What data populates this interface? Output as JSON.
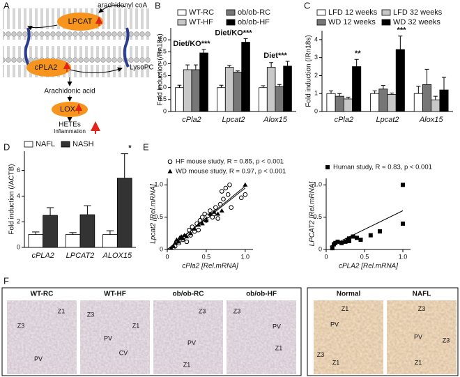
{
  "panel_a": {
    "panel": "A",
    "acyl_donor": "arachidonyl coA",
    "enzyme_1": "LPCAT",
    "enzyme_2": "cPLA2",
    "product_1": "LysoPC",
    "product_2": "Arachidonic acid",
    "enzyme_3": "LOX",
    "product_3": "HETEs",
    "outcome": "Inflammation"
  },
  "chart_data": [
    {
      "type": "bar",
      "panel": "B",
      "y_label": "Fold induction (/Rn18s)",
      "categories": [
        "cPla2",
        "Lpcat2",
        "Alox15"
      ],
      "series": [
        {
          "name": "WT-RC",
          "color": "#ffffff",
          "values": [
            1.0,
            1.0,
            1.0
          ],
          "errors": [
            0.1,
            0.1,
            0.08
          ]
        },
        {
          "name": "WT-HF",
          "color": "#c8c8c8",
          "values": [
            1.75,
            1.85,
            1.85
          ],
          "errors": [
            0.2,
            0.08,
            0.2
          ]
        },
        {
          "name": "ob/ob-RC",
          "color": "#777777",
          "values": [
            1.75,
            1.65,
            1.05
          ],
          "errors": [
            0.2,
            0.05,
            0.08
          ]
        },
        {
          "name": "ob/ob-HF",
          "color": "#000000",
          "values": [
            2.45,
            2.9,
            1.9
          ],
          "errors": [
            0.15,
            0.15,
            0.2
          ]
        }
      ],
      "annotations": [
        "Diet/KO***",
        "Diet/KO***",
        "Diet***"
      ],
      "ylim": [
        0,
        3.5
      ],
      "yticks": [
        0,
        0.5,
        {
          "value": 1,
          "label": "1.0"
        },
        1.5,
        {
          "value": 2,
          "label": "2.0"
        },
        2.5,
        {
          "value": 3,
          "label": "3.0"
        }
      ]
    },
    {
      "type": "bar",
      "panel": "C",
      "y_label": "Fold induction (/Rn18s)",
      "categories": [
        "cPla2",
        "Lpcat2",
        "Alox15"
      ],
      "series": [
        {
          "name": "LFD 12 weeks",
          "color": "#ffffff",
          "values": [
            1.0,
            1.0,
            1.0
          ],
          "errors": [
            0.15,
            0.15,
            0.4
          ]
        },
        {
          "name": "WD 12 weeks",
          "color": "#777777",
          "values": [
            0.85,
            1.25,
            1.5
          ],
          "errors": [
            0.15,
            0.2,
            0.85
          ]
        },
        {
          "name": "LFD 32 weeks",
          "color": "#c8c8c8",
          "values": [
            0.7,
            0.95,
            0.65
          ],
          "errors": [
            0.1,
            0.08,
            0.2
          ]
        },
        {
          "name": "WD 32 weeks",
          "color": "#000000",
          "values": [
            2.5,
            3.45,
            1.2
          ],
          "errors": [
            0.4,
            0.75,
            0.7
          ]
        }
      ],
      "annotations": [
        "**",
        "***"
      ],
      "ylim": [
        0,
        4.5
      ],
      "yticks": [
        0,
        1,
        2,
        3,
        4
      ]
    },
    {
      "type": "bar",
      "panel": "D",
      "y_label": "Fold induction (/ACTB)",
      "categories": [
        "cPLA2",
        "LPCAT2",
        "ALOX15"
      ],
      "series": [
        {
          "name": "NAFL",
          "color": "#ffffff",
          "values": [
            1.0,
            1.0,
            1.0
          ],
          "errors": [
            0.2,
            0.15,
            0.3
          ]
        },
        {
          "name": "NASH",
          "color": "#333333",
          "values": [
            2.5,
            2.55,
            5.4
          ],
          "errors": [
            0.6,
            0.7,
            1.9
          ]
        }
      ],
      "annotations": [
        "*"
      ],
      "ylim": [
        0,
        7.5
      ],
      "yticks": [
        0,
        2,
        4,
        6
      ]
    },
    {
      "type": "scatter",
      "panel": "E",
      "x_label": "cPla2 [Rel.mRNA]",
      "y_label": "Lpcat2 [Rel.mRNA]",
      "series": [
        {
          "name": "HF mouse study, R = 0.85, p < 0.001",
          "marker": "circle",
          "color": "#000000",
          "x": [
            0.1,
            0.12,
            0.15,
            0.2,
            0.22,
            0.25,
            0.28,
            0.3,
            0.32,
            0.35,
            0.38,
            0.4,
            0.42,
            0.45,
            0.48,
            0.5,
            0.52,
            0.55,
            0.58,
            0.6,
            0.62,
            0.65,
            0.68,
            0.7,
            0.72,
            0.75,
            0.78,
            0.8,
            0.82,
            0.95,
            1.0
          ],
          "y": [
            0.05,
            0.12,
            0.1,
            0.15,
            0.2,
            0.12,
            0.3,
            0.22,
            0.35,
            0.28,
            0.4,
            0.3,
            0.45,
            0.5,
            0.55,
            0.45,
            0.52,
            0.6,
            0.5,
            0.55,
            0.65,
            0.48,
            0.7,
            0.9,
            0.78,
            0.95,
            0.85,
            1.0,
            0.65,
            0.8,
            0.85
          ]
        },
        {
          "name": "WD mouse study, R = 0.97, p < 0.001",
          "marker": "triangle",
          "color": "#000000",
          "x": [
            0.05,
            0.08,
            0.1,
            0.12,
            0.14,
            0.16,
            0.18,
            0.2,
            0.22,
            0.25,
            0.3,
            0.35,
            0.4,
            0.45,
            0.5,
            0.55,
            0.6,
            0.65,
            0.7,
            1.0
          ],
          "y": [
            0.02,
            0.05,
            0.1,
            0.15,
            0.12,
            0.18,
            0.2,
            0.17,
            0.22,
            0.2,
            0.25,
            0.32,
            0.38,
            0.4,
            0.45,
            0.55,
            0.58,
            0.55,
            0.6,
            1.0
          ]
        }
      ],
      "trend_lines": [
        {
          "x": [
            0,
            1
          ],
          "y": [
            0,
            0.95
          ]
        },
        {
          "x": [
            0,
            1
          ],
          "y": [
            0,
            0.98
          ]
        }
      ],
      "xlim": [
        0,
        1.1
      ],
      "xticks": [
        0,
        0.5,
        {
          "value": 1,
          "label": "1.0"
        }
      ],
      "ylim": [
        0,
        1.1
      ],
      "yticks": [
        0,
        0.5,
        {
          "value": 1,
          "label": "1.0"
        }
      ]
    },
    {
      "type": "scatter",
      "x_label": "cPLA2 [Rel.mRNA]",
      "y_label": "LPCAT2 [Rel.mRNA]",
      "series": [
        {
          "name": "Human study, R = 0.83, p < 0.001",
          "marker": "square",
          "color": "#000000",
          "x": [
            0.08,
            0.1,
            0.12,
            0.15,
            0.2,
            0.25,
            0.28,
            0.3,
            0.3,
            0.35,
            0.4,
            0.45,
            0.58,
            0.7,
            1.0,
            1.0
          ],
          "y": [
            0.02,
            0.08,
            0.1,
            0.12,
            0.1,
            0.12,
            0.15,
            0.13,
            0.17,
            0.2,
            0.18,
            0.15,
            0.22,
            0.28,
            1.0,
            0.4
          ]
        }
      ],
      "trend_lines": [
        {
          "x": [
            0.05,
            1
          ],
          "y": [
            0.05,
            0.6
          ]
        }
      ],
      "xlim": [
        0,
        1.1
      ],
      "xticks": [
        0,
        0.5,
        {
          "value": 1,
          "label": "1.0"
        }
      ],
      "ylim": [
        0,
        1.1
      ],
      "yticks": [
        0,
        0.5,
        {
          "value": 1,
          "label": "1.0"
        }
      ]
    }
  ],
  "panel_f": {
    "panel": "F",
    "images": [
      {
        "label": "WT-RC",
        "zones": [
          "Z1",
          "Z3",
          "PV"
        ]
      },
      {
        "label": "WT-HF",
        "zones": [
          "Z3",
          "Z1",
          "PV",
          "CV"
        ]
      },
      {
        "label": "ob/ob-RC",
        "zones": [
          "Z3",
          "PV",
          "Z1"
        ]
      },
      {
        "label": "ob/ob-HF",
        "zones": [
          "Z3",
          "PV",
          "Z1"
        ]
      },
      {
        "label": "Normal",
        "zones": [
          "Z1",
          "PV",
          "Z3",
          "Z1"
        ]
      },
      {
        "label": "NAFL",
        "zones": [
          "Z3",
          "PV",
          "Z3",
          "Z1"
        ]
      }
    ]
  }
}
